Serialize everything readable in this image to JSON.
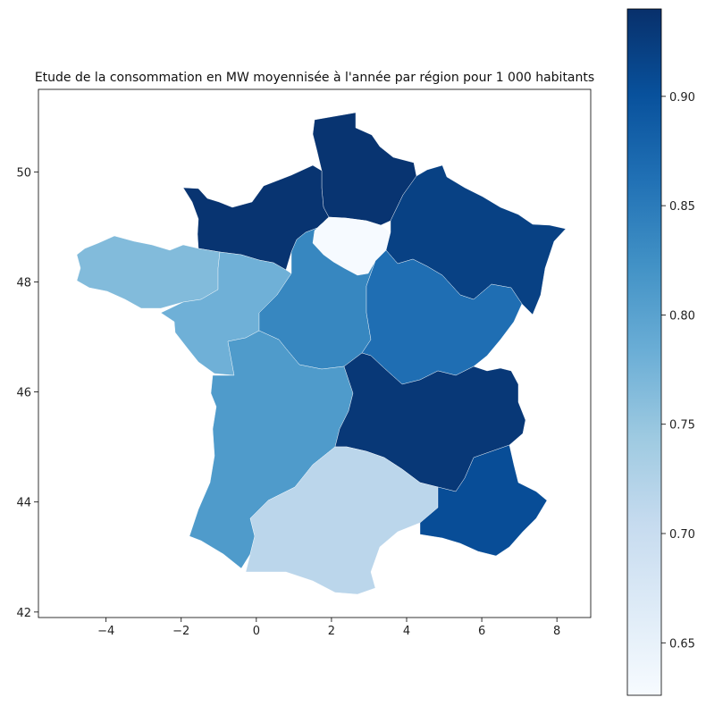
{
  "chart_data": {
    "type": "choropleth",
    "title": "Etude de la consommation en MW moyennisée à l'année par région pour 1 000 habitants",
    "x_ticks": [
      "−4",
      "−2",
      "0",
      "2",
      "4",
      "6",
      "8"
    ],
    "y_ticks": [
      "42",
      "44",
      "46",
      "48",
      "50"
    ],
    "xlim": [
      -5.8,
      8.9
    ],
    "ylim": [
      41.9,
      51.5
    ],
    "colorbar": {
      "colormap": "Blues",
      "range": [
        0.626,
        0.94
      ],
      "ticks": [
        "0.65",
        "0.70",
        "0.75",
        "0.80",
        "0.85",
        "0.90"
      ]
    },
    "regions": [
      {
        "id": "hauts-de-france",
        "value": 0.935
      },
      {
        "id": "normandie",
        "value": 0.935
      },
      {
        "id": "grand-est",
        "value": 0.92
      },
      {
        "id": "ile-de-france",
        "value": 0.628
      },
      {
        "id": "bretagne",
        "value": 0.765
      },
      {
        "id": "pays-de-la-loire",
        "value": 0.78
      },
      {
        "id": "centre-val-de-loire",
        "value": 0.835
      },
      {
        "id": "bourgogne-franche-comte",
        "value": 0.865
      },
      {
        "id": "nouvelle-aquitaine",
        "value": 0.81
      },
      {
        "id": "auvergne-rhone-alpes",
        "value": 0.93
      },
      {
        "id": "occitanie",
        "value": 0.715
      },
      {
        "id": "provence-alpes-cote-d-azur",
        "value": 0.905
      }
    ]
  }
}
